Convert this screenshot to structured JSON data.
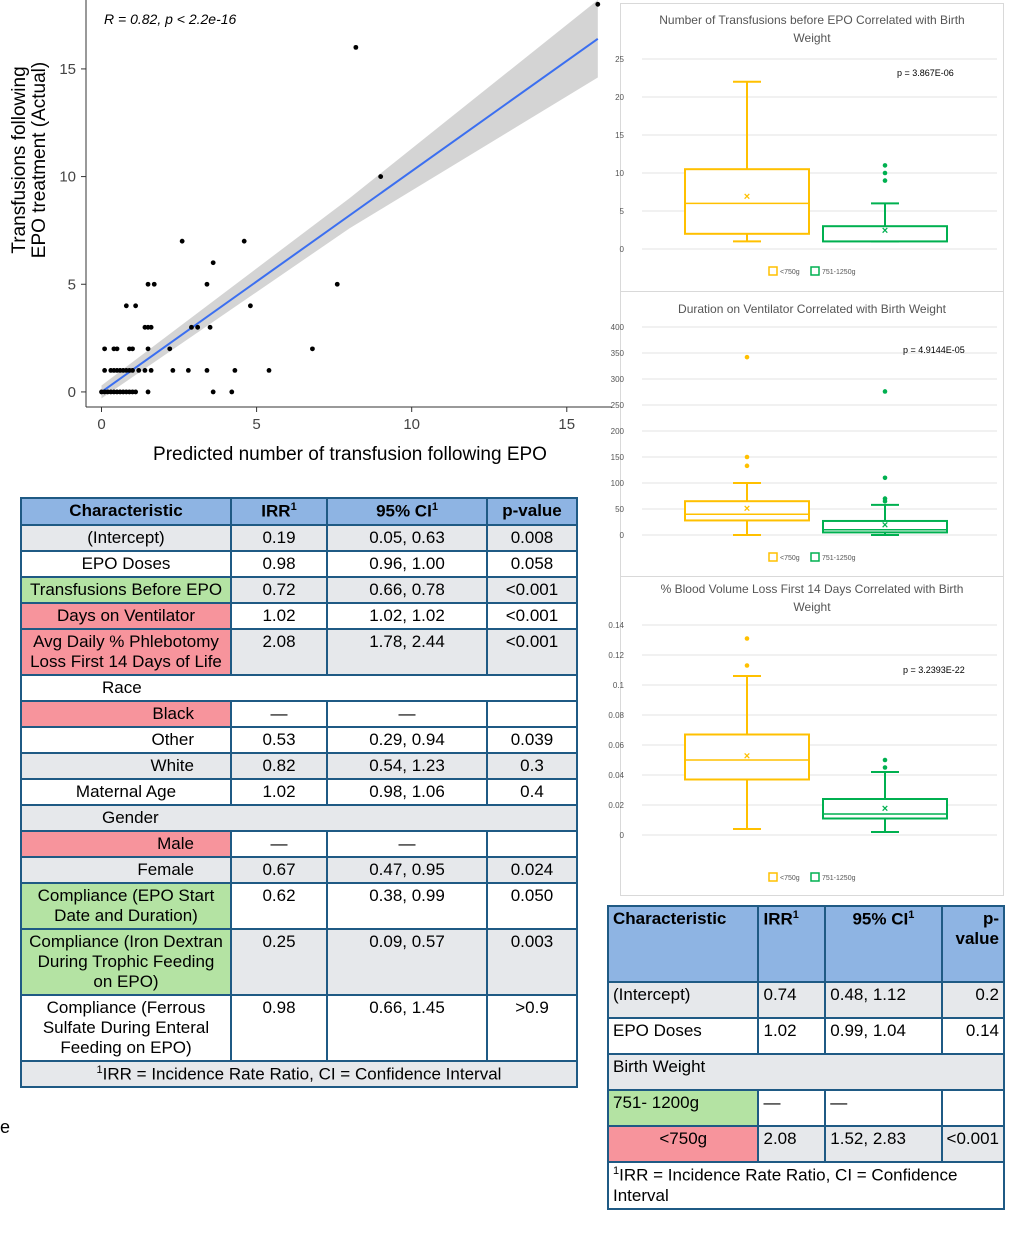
{
  "scatter": {
    "chart_data": {
      "type": "scatter",
      "annotation": "R = 0.82, p < 2.2e-16",
      "xlabel": "Predicted number of transfusion following EPO",
      "ylabel_line1": "Transfusions following",
      "ylabel_line2": "EPO treatment (Actual)",
      "xlim": [
        -0.5,
        16.2
      ],
      "ylim": [
        -0.7,
        18.2
      ],
      "xticks": [
        0,
        5,
        10,
        15
      ],
      "yticks": [
        0,
        5,
        10,
        15
      ],
      "fit_line": {
        "x": [
          0,
          16
        ],
        "y": [
          0,
          16.4
        ],
        "color": "#3b6ff0"
      },
      "ci_band": {
        "x": [
          0,
          8,
          16
        ],
        "lower": [
          -0.3,
          7.6,
          14.6
        ],
        "upper": [
          0.3,
          9.0,
          18.2
        ],
        "color": "#d4d4d4"
      },
      "points": [
        [
          0,
          0
        ],
        [
          0.1,
          0
        ],
        [
          0.2,
          0
        ],
        [
          0.3,
          0
        ],
        [
          0.4,
          0
        ],
        [
          0.5,
          0
        ],
        [
          0.6,
          0
        ],
        [
          0.7,
          0
        ],
        [
          0.8,
          0
        ],
        [
          0.9,
          0
        ],
        [
          1.0,
          0
        ],
        [
          1.1,
          0
        ],
        [
          1.5,
          0
        ],
        [
          3.6,
          0
        ],
        [
          4.2,
          0
        ],
        [
          0.1,
          1
        ],
        [
          0.3,
          1
        ],
        [
          0.4,
          1
        ],
        [
          0.5,
          1
        ],
        [
          0.6,
          1
        ],
        [
          0.7,
          1
        ],
        [
          0.8,
          1
        ],
        [
          0.9,
          1
        ],
        [
          1.0,
          1
        ],
        [
          1.2,
          1
        ],
        [
          1.4,
          1
        ],
        [
          1.6,
          1
        ],
        [
          2.3,
          1
        ],
        [
          2.8,
          1
        ],
        [
          3.4,
          1
        ],
        [
          4.3,
          1
        ],
        [
          5.4,
          1
        ],
        [
          0.1,
          2
        ],
        [
          0.4,
          2
        ],
        [
          0.5,
          2
        ],
        [
          0.9,
          2
        ],
        [
          1.0,
          2
        ],
        [
          1.5,
          2
        ],
        [
          2.2,
          2
        ],
        [
          6.8,
          2
        ],
        [
          1.4,
          3
        ],
        [
          1.5,
          3
        ],
        [
          1.6,
          3
        ],
        [
          2.9,
          3
        ],
        [
          3.1,
          3
        ],
        [
          3.5,
          3
        ],
        [
          0.8,
          4
        ],
        [
          1.1,
          4
        ],
        [
          4.8,
          4
        ],
        [
          1.5,
          5
        ],
        [
          1.7,
          5
        ],
        [
          3.4,
          5
        ],
        [
          7.6,
          5
        ],
        [
          3.6,
          6
        ],
        [
          2.6,
          7
        ],
        [
          4.6,
          7
        ],
        [
          9.0,
          10
        ],
        [
          8.2,
          16
        ],
        [
          16.0,
          18
        ]
      ]
    }
  },
  "box_charts": [
    {
      "chart_data": {
        "type": "box",
        "title_line1": "Number of Transfusions before EPO Correlated with Birth",
        "title_line2": "Weight",
        "annotation": "p = 3.867E-06",
        "ylim": [
          0,
          25
        ],
        "yticks": [
          0,
          5,
          10,
          15,
          20,
          25
        ],
        "series": [
          {
            "name": "<750g",
            "color": "#ffc000",
            "min": 1,
            "q1": 2,
            "median": 6,
            "q3": 10.5,
            "max": 22,
            "mean": 7,
            "outliers": []
          },
          {
            "name": "751-1250g",
            "color": "#00b050",
            "min": 1,
            "q1": 1,
            "median": 1,
            "q3": 3,
            "max": 6,
            "mean": 2.5,
            "outliers": [
              9,
              10,
              11
            ]
          }
        ]
      }
    },
    {
      "chart_data": {
        "type": "box",
        "title_line1": "Duration on Ventilator Correlated with Birth Weight",
        "title_line2": "",
        "annotation": "p = 4.9144E-05",
        "ylim": [
          0,
          400
        ],
        "yticks": [
          0,
          50,
          100,
          150,
          200,
          250,
          300,
          350,
          400
        ],
        "series": [
          {
            "name": "<750g",
            "color": "#ffc000",
            "min": 0,
            "q1": 28,
            "median": 40,
            "q3": 65,
            "max": 100,
            "mean": 52,
            "outliers": [
              133,
              150,
              342
            ]
          },
          {
            "name": "751-1250g",
            "color": "#00b050",
            "min": 0,
            "q1": 5,
            "median": 10,
            "q3": 27,
            "max": 58,
            "mean": 20,
            "outliers": [
              65,
              70,
              110,
              276
            ]
          }
        ]
      }
    },
    {
      "chart_data": {
        "type": "box",
        "title_line1": "% Blood Volume Loss First 14 Days Correlated with Birth",
        "title_line2": "Weight",
        "annotation": "p = 3.2393E-22",
        "ylim": [
          0,
          0.14
        ],
        "yticks": [
          0,
          0.02,
          0.04,
          0.06,
          0.08,
          0.1,
          0.12,
          0.14
        ],
        "ytick_labels": [
          "0",
          "0.02",
          "0.04",
          "0.06",
          "0.08",
          "0.1",
          "0.12",
          "0.14"
        ],
        "series": [
          {
            "name": "<750g",
            "color": "#ffc000",
            "min": 0.004,
            "q1": 0.037,
            "median": 0.05,
            "q3": 0.067,
            "max": 0.106,
            "mean": 0.053,
            "outliers": [
              0.113,
              0.131
            ]
          },
          {
            "name": "751-1250g",
            "color": "#00b050",
            "min": 0.002,
            "q1": 0.011,
            "median": 0.014,
            "q3": 0.024,
            "max": 0.042,
            "mean": 0.018,
            "outliers": [
              0.045,
              0.05
            ]
          }
        ]
      }
    }
  ],
  "table1": {
    "headers": {
      "characteristic": "Characteristic",
      "irr": "IRR",
      "irr_sup": "1",
      "ci": "95% CI",
      "ci_sup": "1",
      "p": "p-value"
    },
    "rows": [
      {
        "c": "(Intercept)",
        "irr": "0.19",
        "ci": "0.05, 0.63",
        "p": "0.008",
        "cls": "gray",
        "ccls": "gray"
      },
      {
        "c": "EPO Doses",
        "irr": "0.98",
        "ci": "0.96, 1.00",
        "p": "0.058",
        "cls": "white",
        "ccls": "white"
      },
      {
        "c": "Transfusions Before EPO",
        "irr": "0.72",
        "ci": "0.66, 0.78",
        "p": "<0.001",
        "cls": "gray",
        "ccls": "green"
      },
      {
        "c": "Days on Ventilator",
        "irr": "1.02",
        "ci": "1.02, 1.02",
        "p": "<0.001",
        "cls": "white",
        "ccls": "pink"
      },
      {
        "c": "Avg Daily % Phlebotomy Loss First 14 Days of Life",
        "irr": "2.08",
        "ci": "1.78, 2.44",
        "p": "<0.001",
        "cls": "gray",
        "ccls": "pink"
      },
      {
        "c": "Race",
        "irr": "",
        "ci": "",
        "p": "",
        "cls": "white",
        "ccls": "white",
        "span": true
      },
      {
        "c": "Black",
        "irr": "—",
        "ci": "—",
        "p": "",
        "cls": "white",
        "ccls": "pink",
        "indent": true
      },
      {
        "c": "Other",
        "irr": "0.53",
        "ci": "0.29, 0.94",
        "p": "0.039",
        "cls": "white",
        "ccls": "white",
        "indent": true
      },
      {
        "c": "White",
        "irr": "0.82",
        "ci": "0.54, 1.23",
        "p": "0.3",
        "cls": "gray",
        "ccls": "gray",
        "indent": true
      },
      {
        "c": "Maternal Age",
        "irr": "1.02",
        "ci": "0.98, 1.06",
        "p": "0.4",
        "cls": "white",
        "ccls": "white"
      },
      {
        "c": "Gender",
        "irr": "",
        "ci": "",
        "p": "",
        "cls": "gray",
        "ccls": "gray",
        "span": true
      },
      {
        "c": "Male",
        "irr": "—",
        "ci": "—",
        "p": "",
        "cls": "white",
        "ccls": "pink",
        "indent": true
      },
      {
        "c": "Female",
        "irr": "0.67",
        "ci": "0.47, 0.95",
        "p": "0.024",
        "cls": "gray",
        "ccls": "gray",
        "indent": true
      },
      {
        "c": "Compliance (EPO Start Date and Duration)",
        "irr": "0.62",
        "ci": "0.38, 0.99",
        "p": "0.050",
        "cls": "white",
        "ccls": "green"
      },
      {
        "c": "Compliance (Iron Dextran During Trophic Feeding on EPO)",
        "irr": "0.25",
        "ci": "0.09, 0.57",
        "p": "0.003",
        "cls": "gray",
        "ccls": "green"
      },
      {
        "c": "Compliance (Ferrous Sulfate During Enteral Feeding on EPO)",
        "irr": "0.98",
        "ci": "0.66, 1.45",
        "p": ">0.9",
        "cls": "white",
        "ccls": "white"
      }
    ],
    "footnote_sup": "1",
    "footnote": "IRR = Incidence Rate Ratio, CI = Confidence Interval"
  },
  "table2": {
    "headers": {
      "characteristic": "Characteristic",
      "irr": "IRR",
      "irr_sup": "1",
      "ci": "95% CI",
      "ci_sup": "1",
      "p": "p-value"
    },
    "rows": [
      {
        "c": "(Intercept)",
        "irr": "0.74",
        "ci": "0.48, 1.12",
        "p": "0.2",
        "cls": "gray",
        "ccls": "gray"
      },
      {
        "c": "EPO Doses",
        "irr": "1.02",
        "ci": "0.99, 1.04",
        "p": "0.14",
        "cls": "white",
        "ccls": "white"
      },
      {
        "c": "Birth Weight",
        "irr": "",
        "ci": "",
        "p": "",
        "cls": "gray",
        "ccls": "gray",
        "span": true
      },
      {
        "c": "751- 1200g",
        "irr": "—",
        "ci": "—",
        "p": "",
        "cls": "white",
        "ccls": "green"
      },
      {
        "c": "<750g",
        "irr": "2.08",
        "ci": "1.52, 2.83",
        "p": "<0.001",
        "cls": "gray",
        "ccls": "pink",
        "center": true
      }
    ],
    "footnote_sup": "1",
    "footnote": "IRR = Incidence Rate Ratio, CI = Confidence Interval"
  },
  "stray_glyph": "e"
}
